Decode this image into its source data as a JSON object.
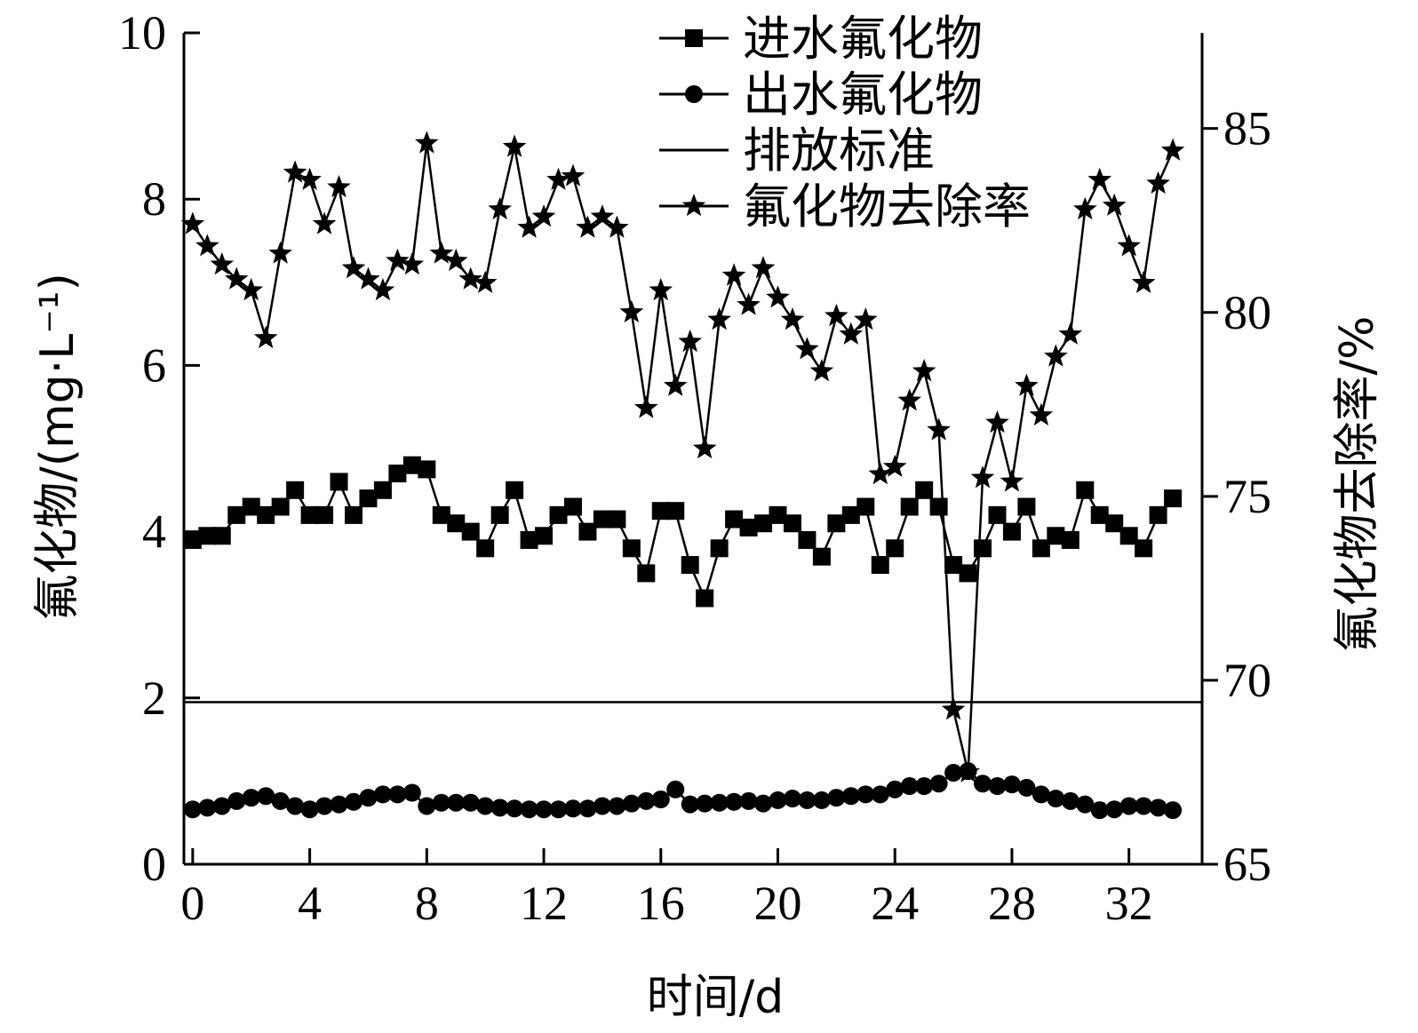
{
  "chart_data": {
    "type": "line",
    "xlabel": "时间/d",
    "ylabel_left": "氟化物/(mg·L⁻¹)",
    "ylabel_right": "氟化物去除率/%",
    "xlim": [
      -0.3,
      34.5
    ],
    "x_ticks": [
      0,
      4,
      8,
      12,
      16,
      20,
      24,
      28,
      32
    ],
    "ylim_left": [
      0,
      10
    ],
    "y_ticks_left": [
      0,
      2,
      4,
      6,
      8,
      10
    ],
    "ylim_right": [
      65,
      87.6
    ],
    "y_ticks_right": [
      65,
      70,
      75,
      80,
      85
    ],
    "legend_position": "top-center",
    "series": [
      {
        "name": "进水氟化物",
        "axis": "left",
        "marker": "square",
        "x": [
          0,
          0.5,
          1,
          1.5,
          2,
          2.5,
          3,
          3.5,
          4,
          4.5,
          5,
          5.5,
          6,
          6.5,
          7,
          7.5,
          8,
          8.5,
          9,
          9.5,
          10,
          10.5,
          11,
          11.5,
          12,
          12.5,
          13,
          13.5,
          14,
          14.5,
          15,
          15.5,
          16,
          16.5,
          17,
          17.5,
          18,
          18.5,
          19,
          19.5,
          20,
          20.5,
          21,
          21.5,
          22,
          22.5,
          23,
          23.5,
          24,
          24.5,
          25,
          25.5,
          26,
          26.5,
          27,
          27.5,
          28,
          28.5,
          29,
          29.5,
          30,
          30.5,
          31,
          31.5,
          32,
          32.5,
          33,
          33.5
        ],
        "values": [
          3.9,
          3.95,
          3.95,
          4.2,
          4.3,
          4.2,
          4.3,
          4.5,
          4.2,
          4.2,
          4.6,
          4.2,
          4.4,
          4.5,
          4.7,
          4.8,
          4.75,
          4.2,
          4.1,
          4.0,
          3.8,
          4.2,
          4.5,
          3.9,
          3.95,
          4.2,
          4.3,
          4.0,
          4.15,
          4.15,
          3.8,
          3.5,
          4.25,
          4.25,
          3.6,
          3.2,
          3.8,
          4.15,
          4.05,
          4.1,
          4.2,
          4.1,
          3.9,
          3.7,
          4.1,
          4.2,
          4.3,
          3.6,
          3.8,
          4.3,
          4.5,
          4.3,
          3.6,
          3.5,
          3.8,
          4.2,
          4.0,
          4.3,
          3.8,
          3.95,
          3.9,
          4.5,
          4.2,
          4.1,
          3.95,
          3.8,
          4.2,
          4.4
        ]
      },
      {
        "name": "出水氟化物",
        "axis": "left",
        "marker": "circle",
        "x": [
          0,
          0.5,
          1,
          1.5,
          2,
          2.5,
          3,
          3.5,
          4,
          4.5,
          5,
          5.5,
          6,
          6.5,
          7,
          7.5,
          8,
          8.5,
          9,
          9.5,
          10,
          10.5,
          11,
          11.5,
          12,
          12.5,
          13,
          13.5,
          14,
          14.5,
          15,
          15.5,
          16,
          16.5,
          17,
          17.5,
          18,
          18.5,
          19,
          19.5,
          20,
          20.5,
          21,
          21.5,
          22,
          22.5,
          23,
          23.5,
          24,
          24.5,
          25,
          25.5,
          26,
          26.5,
          27,
          27.5,
          28,
          28.5,
          29,
          29.5,
          30,
          30.5,
          31,
          31.5,
          32,
          32.5,
          33,
          33.5
        ],
        "values": [
          0.66,
          0.68,
          0.7,
          0.76,
          0.8,
          0.82,
          0.76,
          0.7,
          0.66,
          0.7,
          0.72,
          0.75,
          0.8,
          0.84,
          0.84,
          0.86,
          0.7,
          0.74,
          0.74,
          0.74,
          0.7,
          0.68,
          0.67,
          0.66,
          0.66,
          0.66,
          0.67,
          0.67,
          0.7,
          0.7,
          0.73,
          0.76,
          0.78,
          0.9,
          0.72,
          0.73,
          0.74,
          0.75,
          0.76,
          0.73,
          0.77,
          0.79,
          0.77,
          0.77,
          0.8,
          0.82,
          0.84,
          0.84,
          0.9,
          0.94,
          0.94,
          0.97,
          1.1,
          1.12,
          0.97,
          0.94,
          0.96,
          0.92,
          0.84,
          0.79,
          0.76,
          0.72,
          0.65,
          0.66,
          0.7,
          0.7,
          0.68,
          0.65
        ]
      },
      {
        "name": "排放标准",
        "axis": "left",
        "marker": "none",
        "x": [
          -0.3,
          34.5
        ],
        "values": [
          1.95,
          1.95
        ]
      },
      {
        "name": "氟化物去除率",
        "axis": "right",
        "marker": "star",
        "x": [
          0,
          0.5,
          1,
          1.5,
          2,
          2.5,
          3,
          3.5,
          4,
          4.5,
          5,
          5.5,
          6,
          6.5,
          7,
          7.5,
          8,
          8.5,
          9,
          9.5,
          10,
          10.5,
          11,
          11.5,
          12,
          12.5,
          13,
          13.5,
          14,
          14.5,
          15,
          15.5,
          16,
          16.5,
          17,
          17.5,
          18,
          18.5,
          19,
          19.5,
          20,
          20.5,
          21,
          21.5,
          22,
          22.5,
          23,
          23.5,
          24,
          24.5,
          25,
          25.5,
          26,
          26.5,
          27,
          27.5,
          28,
          28.5,
          29,
          29.5,
          30,
          30.5,
          31,
          31.5,
          32,
          32.5,
          33,
          33.5
        ],
        "values": [
          82.4,
          81.8,
          81.3,
          80.9,
          80.6,
          79.3,
          81.6,
          83.8,
          83.6,
          82.4,
          83.4,
          81.2,
          80.9,
          80.6,
          81.4,
          81.3,
          84.6,
          81.6,
          81.4,
          80.9,
          80.8,
          82.8,
          84.5,
          82.3,
          82.6,
          83.6,
          83.7,
          82.3,
          82.6,
          82.3,
          80.0,
          77.4,
          80.6,
          78.0,
          79.2,
          76.3,
          79.8,
          81.0,
          80.2,
          81.2,
          80.4,
          79.8,
          79.0,
          78.4,
          79.9,
          79.4,
          79.8,
          75.6,
          75.8,
          77.6,
          78.4,
          76.8,
          69.2,
          67.5,
          75.5,
          77.0,
          75.4,
          78.0,
          77.2,
          78.8,
          79.4,
          82.8,
          83.6,
          82.9,
          81.8,
          80.8,
          83.5,
          84.4
        ]
      }
    ]
  }
}
